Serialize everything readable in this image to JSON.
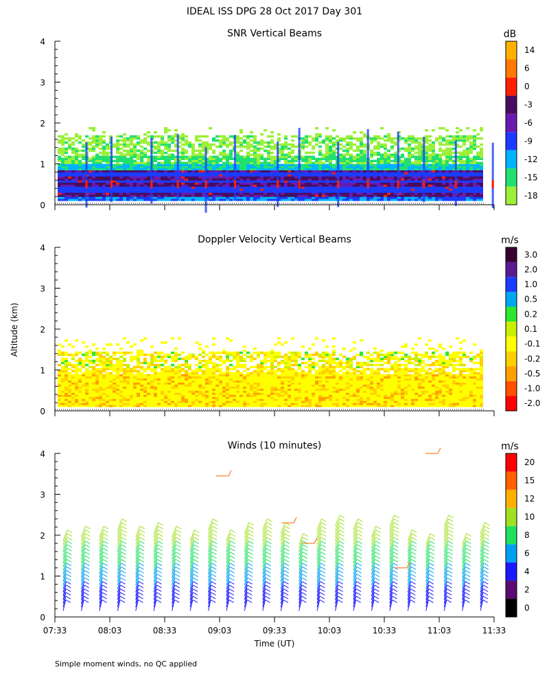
{
  "page_title": "IDEAL ISS DPG  28 Oct 2017 Day 301",
  "y_axis_label": "Altitude (km)",
  "x_axis_label": "Time (UT)",
  "footnote": "Simple moment winds, no QC applied",
  "chart_data": [
    {
      "type": "heatmap",
      "title": "SNR Vertical Beams",
      "xlabel": "",
      "ylabel": "Altitude (km)",
      "ylim": [
        0,
        4
      ],
      "y_ticks": [
        "0",
        "1",
        "2",
        "3",
        "4"
      ],
      "colorbar_unit": "dB",
      "colorbar_labels": [
        "14",
        "6",
        "0",
        "-3",
        "-6",
        "-9",
        "-12",
        "-15",
        "-18"
      ],
      "colorbar_colors": [
        "#ffb000",
        "#ff7a00",
        "#ff2000",
        "#4a0c5e",
        "#6a1ab0",
        "#1a3cff",
        "#00b4ff",
        "#22e070",
        "#9cf03a"
      ],
      "layers": [
        {
          "alt_range": [
            0.1,
            0.9
          ],
          "snr_db": -6
        },
        {
          "alt_range": [
            0.9,
            1.05
          ],
          "snr_db": -12
        },
        {
          "alt_range": [
            1.05,
            1.8
          ],
          "snr_db": -18
        }
      ]
    },
    {
      "type": "heatmap",
      "title": "Doppler Velocity Vertical Beams",
      "xlabel": "",
      "ylabel": "Altitude (km)",
      "ylim": [
        0,
        4
      ],
      "y_ticks": [
        "0",
        "1",
        "2",
        "3",
        "4"
      ],
      "colorbar_unit": "m/s",
      "colorbar_labels": [
        "3.0",
        "2.0",
        "1.0",
        "0.5",
        "0.2",
        "0.1",
        "-0.1",
        "-0.2",
        "-0.5",
        "-1.0",
        "-2.0"
      ],
      "colorbar_colors": [
        "#3a0030",
        "#5a1a90",
        "#1a3cff",
        "#00a8f0",
        "#2ee830",
        "#c8f000",
        "#ffff00",
        "#ffd000",
        "#ffa000",
        "#ff5000",
        "#ff0000"
      ],
      "layers": [
        {
          "alt_range": [
            0.1,
            0.95
          ],
          "velocity_ms": -0.1
        },
        {
          "alt_range": [
            0.95,
            1.7
          ],
          "velocity_ms": 0.1
        }
      ]
    },
    {
      "type": "scatter",
      "title": "Winds (10 minutes)",
      "xlabel": "Time (UT)",
      "ylabel": "Altitude (km)",
      "ylim": [
        0,
        4
      ],
      "y_ticks": [
        "0",
        "1",
        "2",
        "3",
        "4"
      ],
      "x_ticks": [
        "07:33",
        "08:03",
        "08:33",
        "09:03",
        "09:33",
        "10:03",
        "10:33",
        "11:03",
        "11:33"
      ],
      "colorbar_unit": "m/s",
      "colorbar_labels": [
        "20",
        "15",
        "12",
        "10",
        "8",
        "6",
        "4",
        "2",
        "0"
      ],
      "colorbar_colors": [
        "#ff0000",
        "#ff6000",
        "#ffb000",
        "#a0e020",
        "#20e060",
        "#00a0f0",
        "#1a1aff",
        "#5a0a70",
        "#000000"
      ],
      "profiles_count": 24,
      "wind_speed_by_altitude": [
        {
          "alt_range": [
            0.1,
            0.6
          ],
          "speed_ms": 4
        },
        {
          "alt_range": [
            0.6,
            1.1
          ],
          "speed_ms": 6
        },
        {
          "alt_range": [
            1.1,
            1.6
          ],
          "speed_ms": 9
        },
        {
          "alt_range": [
            1.6,
            2.1
          ],
          "speed_ms": 11
        }
      ]
    }
  ]
}
